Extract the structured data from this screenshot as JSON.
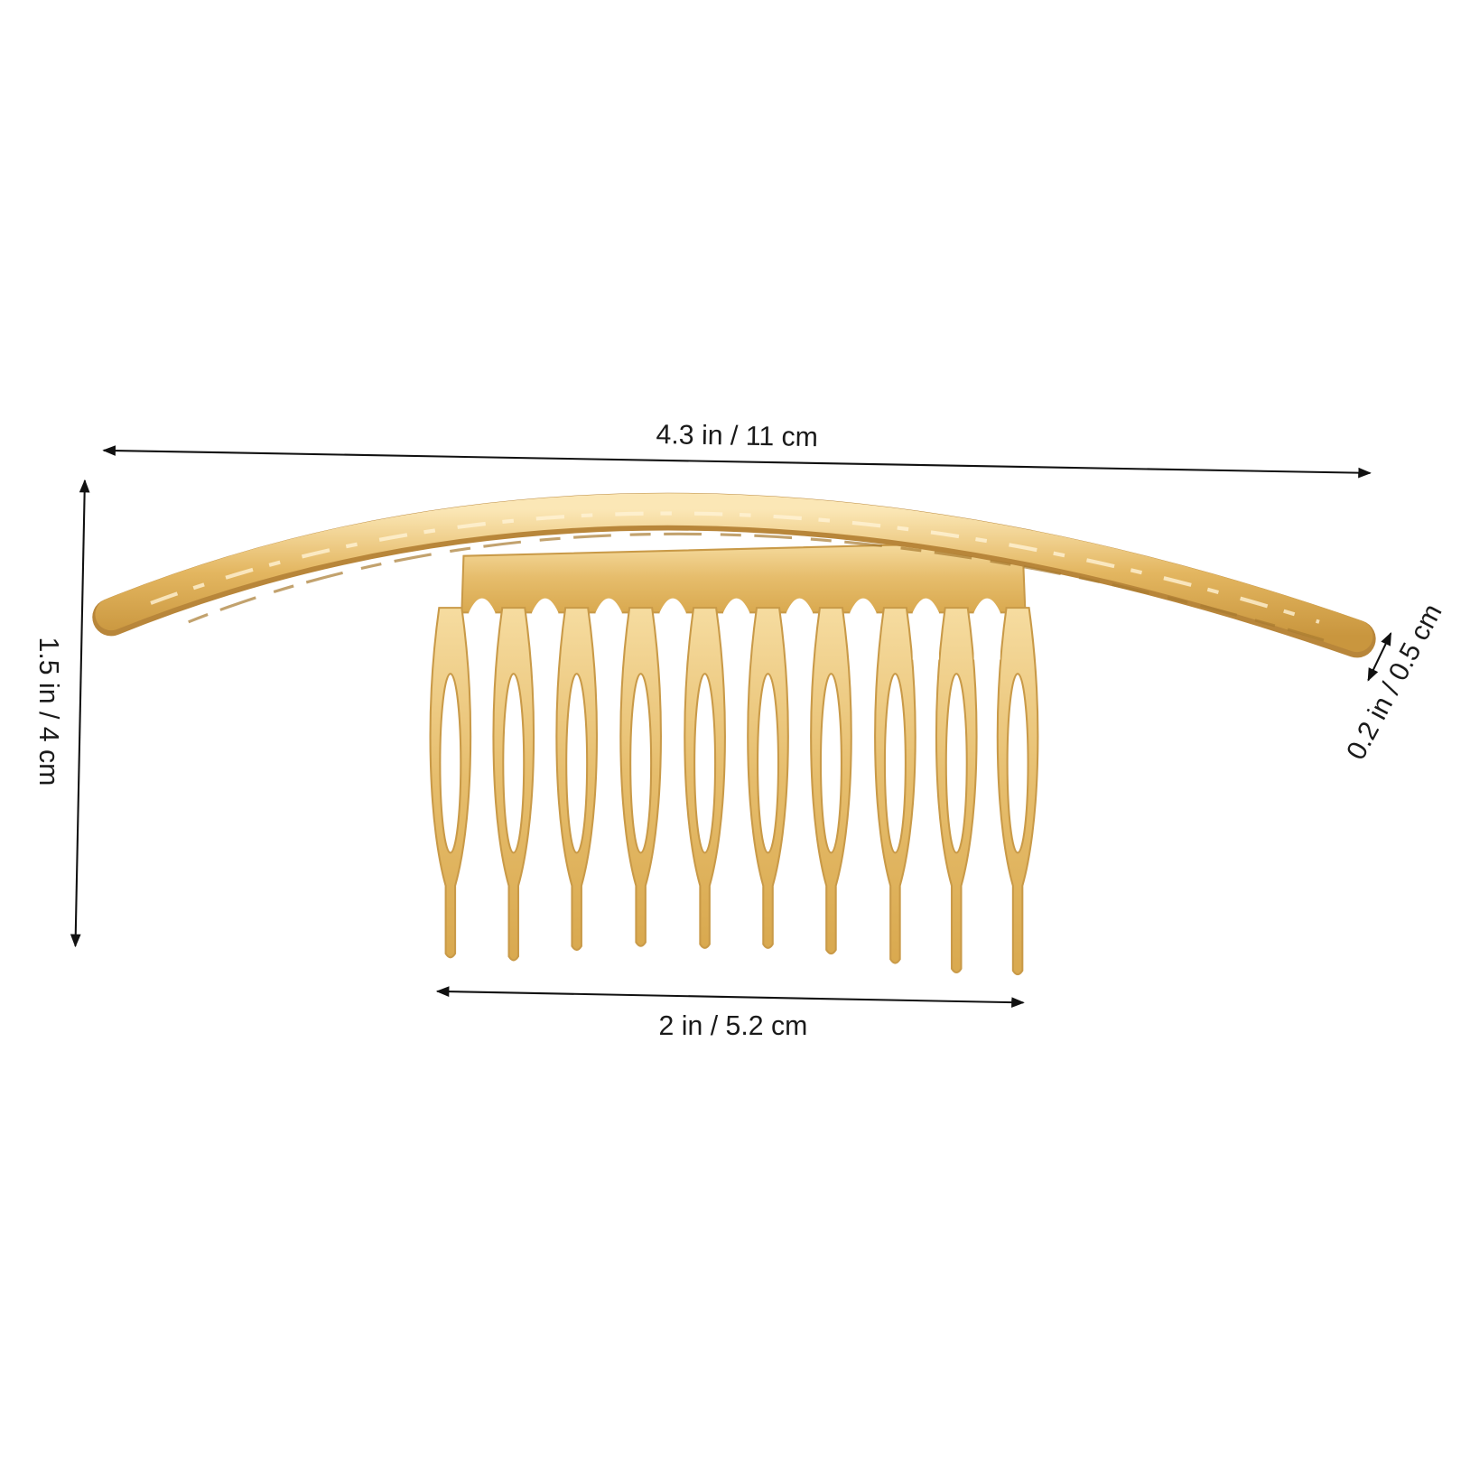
{
  "dimensions": {
    "total_length": "4.3 in / 11 cm",
    "height": "1.5 in / 4 cm",
    "comb_width": "2 in / 5.2 cm",
    "bar_thickness": "0.2 in / 0.5 cm"
  },
  "product": {
    "icon": "gold-hair-comb-with-hammered-bar",
    "color": "#e8c47a"
  }
}
